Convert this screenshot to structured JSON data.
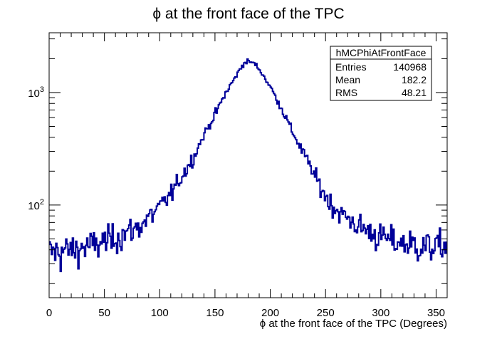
{
  "chart_data": {
    "type": "histogram",
    "title": "ϕ at the front face of the TPC",
    "xlabel": "ϕ at the front face of the TPC (Degrees)",
    "ylabel": "",
    "xlim": [
      0,
      360
    ],
    "ylim": [
      15,
      3400
    ],
    "yscale": "log",
    "grid": false,
    "line_color": "#000099",
    "x_ticks": [
      "0",
      "50",
      "100",
      "150",
      "200",
      "250",
      "300",
      "350"
    ],
    "y_ticks": [
      {
        "base": "10",
        "exp": "2",
        "value": 100
      },
      {
        "base": "10",
        "exp": "3",
        "value": 1000
      }
    ],
    "bin_width": 1,
    "shape_anchors": [
      [
        0,
        38
      ],
      [
        20,
        40
      ],
      [
        40,
        44
      ],
      [
        60,
        52
      ],
      [
        80,
        63
      ],
      [
        100,
        95
      ],
      [
        110,
        125
      ],
      [
        120,
        180
      ],
      [
        130,
        260
      ],
      [
        140,
        420
      ],
      [
        150,
        640
      ],
      [
        160,
        1000
      ],
      [
        170,
        1450
      ],
      [
        175,
        1780
      ],
      [
        180,
        1900
      ],
      [
        185,
        1830
      ],
      [
        190,
        1620
      ],
      [
        200,
        1130
      ],
      [
        210,
        730
      ],
      [
        220,
        450
      ],
      [
        230,
        290
      ],
      [
        240,
        185
      ],
      [
        250,
        120
      ],
      [
        260,
        90
      ],
      [
        280,
        65
      ],
      [
        300,
        52
      ],
      [
        320,
        46
      ],
      [
        340,
        43
      ],
      [
        360,
        44
      ]
    ],
    "stats_box": {
      "name": "hMCPhiAtFrontFace",
      "rows": [
        {
          "label": "Entries",
          "value": "140968"
        },
        {
          "label": "Mean",
          "value": "182.2"
        },
        {
          "label": "RMS",
          "value": "48.21"
        }
      ]
    }
  }
}
